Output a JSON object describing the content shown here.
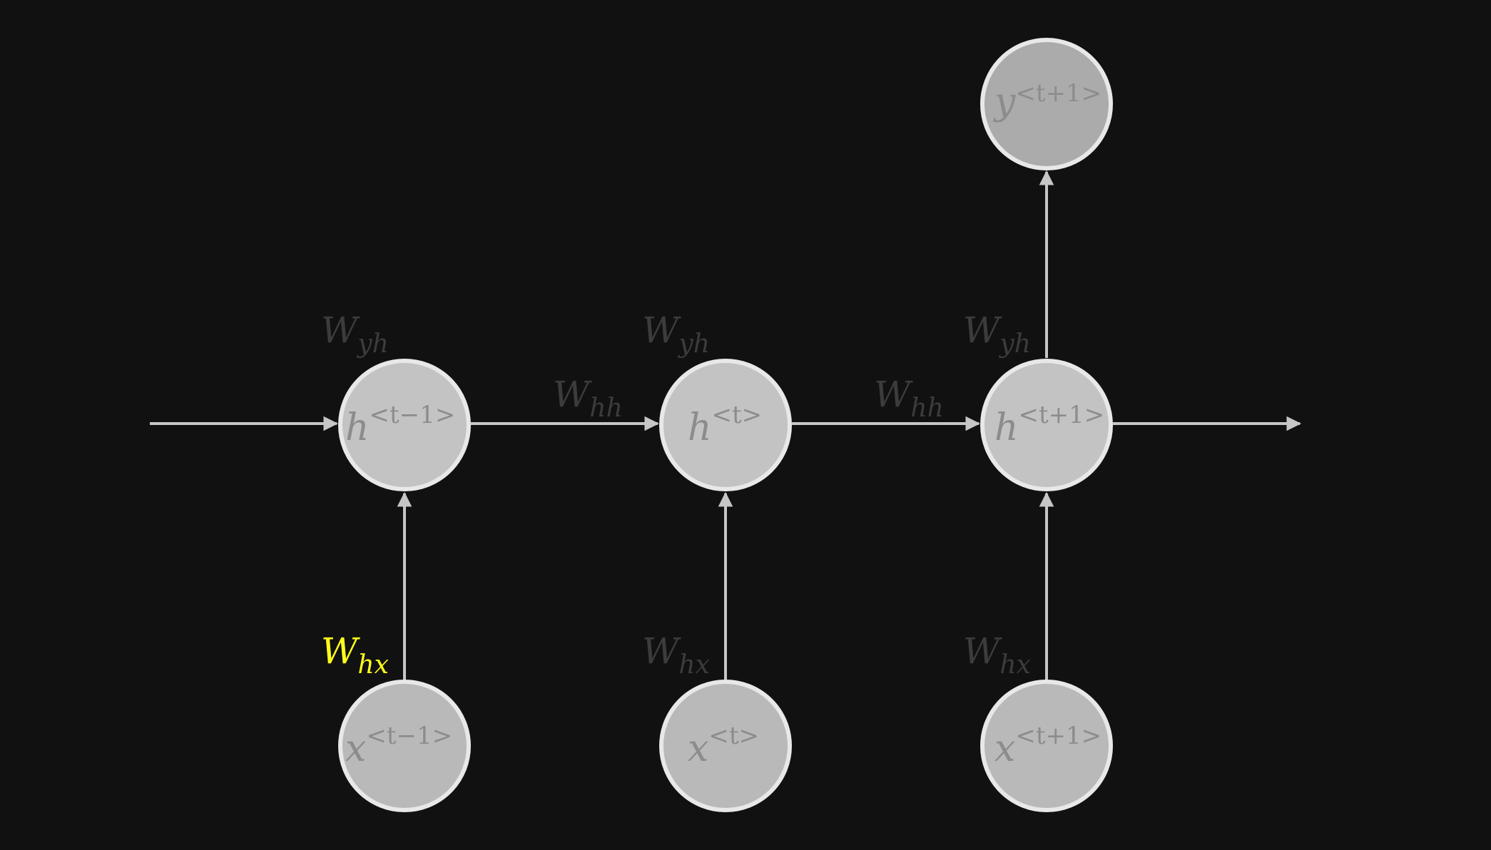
{
  "diagram": {
    "colors": {
      "background": "#111111",
      "edge": "#c6c6c6",
      "node_stroke": "#e8e8e8",
      "hidden_fill": "#c3c3c3",
      "input_fill": "#b9b9b9",
      "output_fill": "#ababab",
      "node_text": "#8c8c8c",
      "weight_text": "#3c3c3c",
      "highlight": "#ffff1a"
    },
    "nodes": {
      "h_prev": {
        "base": "h",
        "sup": "<t−1>"
      },
      "h_curr": {
        "base": "h",
        "sup": "<t>"
      },
      "h_next": {
        "base": "h",
        "sup": "<t+1>"
      },
      "x_prev": {
        "base": "x",
        "sup": "<t−1>"
      },
      "x_curr": {
        "base": "x",
        "sup": "<t>"
      },
      "x_next": {
        "base": "x",
        "sup": "<t+1>"
      },
      "y_next": {
        "base": "y",
        "sup": "<t+1>"
      }
    },
    "weights": {
      "wyh_1": {
        "base": "W",
        "sub": "yh"
      },
      "wyh_2": {
        "base": "W",
        "sub": "yh"
      },
      "wyh_3": {
        "base": "W",
        "sub": "yh"
      },
      "whh_1": {
        "base": "W",
        "sub": "hh"
      },
      "whh_2": {
        "base": "W",
        "sub": "hh"
      },
      "whx_1": {
        "base": "W",
        "sub": "hx",
        "highlighted": true
      },
      "whx_2": {
        "base": "W",
        "sub": "hx"
      },
      "whx_3": {
        "base": "W",
        "sub": "hx"
      }
    }
  }
}
